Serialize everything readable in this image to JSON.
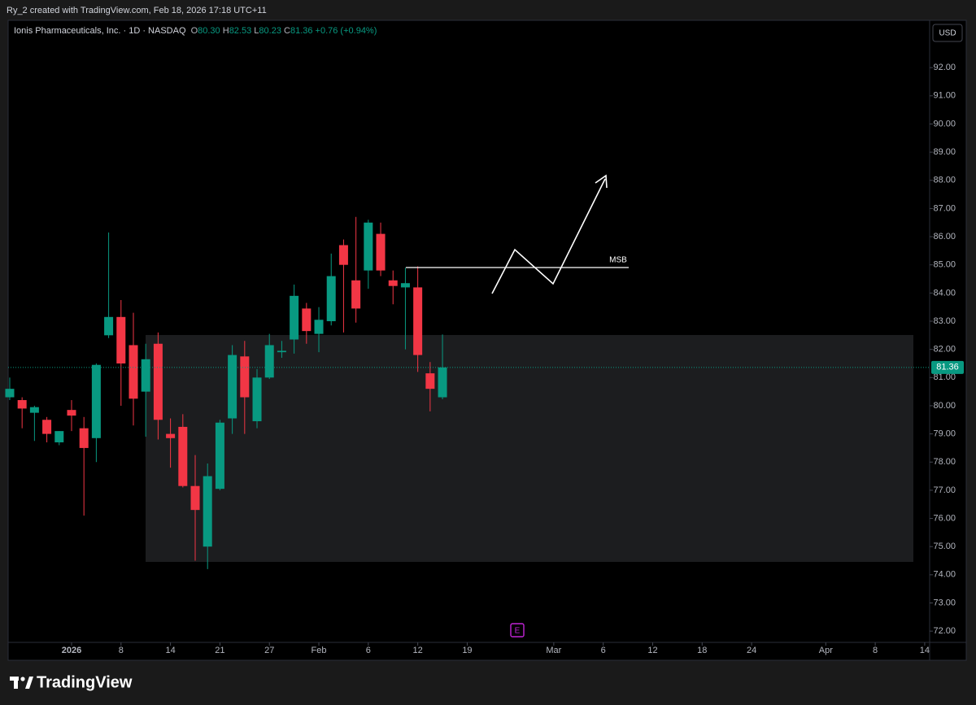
{
  "header": {
    "credit": "Ry_2 created with TradingView.com, Feb 18, 2026 17:18 UTC+11"
  },
  "legend": {
    "symbol": "Ionis Pharmaceuticals, Inc. · 1D · NASDAQ",
    "fields": [
      {
        "key": "O",
        "value": "80.30"
      },
      {
        "key": "H",
        "value": "82.53"
      },
      {
        "key": "L",
        "value": "80.23"
      },
      {
        "key": "C",
        "value": "81.36"
      }
    ],
    "change": "+0.76 (+0.94%)"
  },
  "currency": "USD",
  "earnings_marker": "E",
  "footer": {
    "logo": "TradingView"
  },
  "chart_data": {
    "type": "candlestick",
    "up_color": "#089981",
    "down_color": "#f23645",
    "open": [
      80.3,
      80.2,
      79.75,
      79.5,
      78.7,
      79.85,
      79.2,
      78.85,
      82.5,
      83.15,
      82.15,
      80.5,
      82.2,
      79.0,
      79.25,
      77.15,
      75.0,
      77.05,
      79.55,
      81.75,
      79.45,
      81.0,
      81.9,
      82.35,
      83.45,
      82.55,
      83.0,
      85.7,
      84.45,
      84.8,
      86.1,
      84.45,
      84.2,
      84.2,
      81.15,
      80.3
    ],
    "high": [
      81.0,
      80.3,
      80.0,
      79.6,
      79.1,
      80.2,
      79.6,
      81.5,
      86.15,
      83.75,
      83.3,
      82.2,
      82.6,
      79.55,
      79.7,
      78.25,
      77.95,
      79.5,
      82.15,
      82.3,
      81.3,
      82.55,
      82.3,
      84.3,
      83.65,
      83.5,
      85.4,
      85.9,
      86.7,
      86.6,
      86.5,
      84.8,
      84.9,
      84.95,
      81.55,
      82.53
    ],
    "low": [
      80.2,
      79.2,
      78.75,
      78.7,
      78.6,
      79.1,
      76.1,
      78.0,
      82.4,
      80.0,
      79.3,
      78.9,
      78.8,
      77.8,
      77.1,
      74.5,
      74.2,
      77.0,
      79.0,
      79.0,
      79.2,
      80.95,
      81.7,
      81.85,
      82.2,
      81.9,
      82.85,
      82.6,
      82.95,
      84.15,
      84.6,
      83.6,
      82.0,
      81.2,
      79.8,
      80.23
    ],
    "close": [
      80.6,
      79.9,
      79.95,
      79.0,
      79.1,
      79.65,
      78.5,
      81.45,
      83.15,
      81.5,
      80.25,
      81.65,
      79.5,
      78.85,
      77.15,
      76.3,
      77.5,
      79.4,
      81.8,
      80.3,
      81.0,
      82.15,
      81.95,
      83.9,
      82.65,
      83.05,
      84.6,
      85.0,
      83.45,
      86.5,
      84.8,
      84.25,
      84.35,
      81.8,
      80.6,
      81.36
    ],
    "xlim": [
      -0.13,
      74.4
    ],
    "xticks": [
      {
        "value": 5,
        "label": "2026"
      },
      {
        "value": 9,
        "label": "8"
      },
      {
        "value": 13,
        "label": "14"
      },
      {
        "value": 17,
        "label": "21"
      },
      {
        "value": 21,
        "label": "27"
      },
      {
        "value": 25,
        "label": "Feb"
      },
      {
        "value": 29,
        "label": "6"
      },
      {
        "value": 33,
        "label": "12"
      },
      {
        "value": 37,
        "label": "19"
      },
      {
        "value": 44,
        "label": "Mar"
      },
      {
        "value": 48,
        "label": "6"
      },
      {
        "value": 52,
        "label": "12"
      },
      {
        "value": 56,
        "label": "18"
      },
      {
        "value": 60,
        "label": "24"
      },
      {
        "value": 66,
        "label": "Apr"
      },
      {
        "value": 70,
        "label": "8"
      },
      {
        "value": 74,
        "label": "14"
      }
    ],
    "ylim": [
      71.6,
      93.65
    ],
    "yticks": [
      {
        "value": 72,
        "label": "72.00"
      },
      {
        "value": 73,
        "label": "73.00"
      },
      {
        "value": 74,
        "label": "74.00"
      },
      {
        "value": 75,
        "label": "75.00"
      },
      {
        "value": 76,
        "label": "76.00"
      },
      {
        "value": 77,
        "label": "77.00"
      },
      {
        "value": 78,
        "label": "78.00"
      },
      {
        "value": 79,
        "label": "79.00"
      },
      {
        "value": 80,
        "label": "80.00"
      },
      {
        "value": 81,
        "label": "81.00"
      },
      {
        "value": 82,
        "label": "82.00"
      },
      {
        "value": 83,
        "label": "83.00"
      },
      {
        "value": 84,
        "label": "84.00"
      },
      {
        "value": 85,
        "label": "85.00"
      },
      {
        "value": 86,
        "label": "86.00"
      },
      {
        "value": 87,
        "label": "87.00"
      },
      {
        "value": 88,
        "label": "88.00"
      },
      {
        "value": 89,
        "label": "89.00"
      },
      {
        "value": 90,
        "label": "90.00"
      },
      {
        "value": 91,
        "label": "91.00"
      },
      {
        "value": 92,
        "label": "92.00"
      }
    ],
    "last_price": {
      "value": 81.36,
      "label": "81.36"
    },
    "annotations": [
      {
        "text": "MSB"
      }
    ]
  }
}
